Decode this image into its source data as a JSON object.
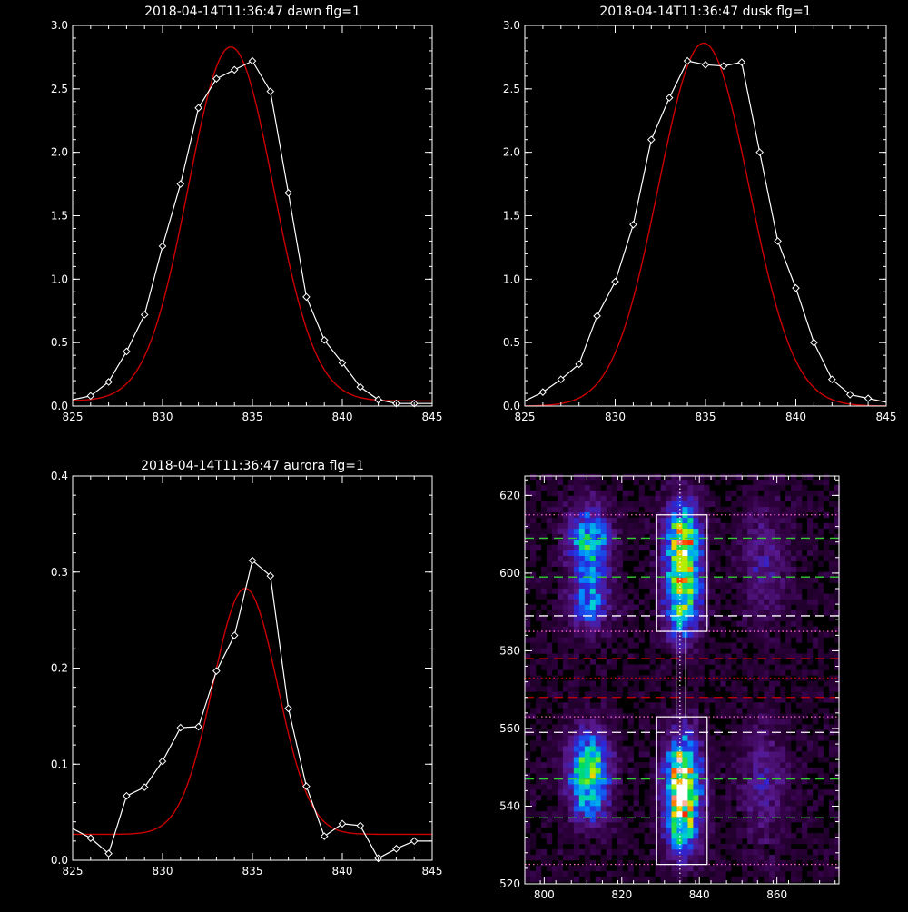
{
  "colors": {
    "background": "#000000",
    "axes": "#ffffff",
    "data_line": "#ffffff",
    "fit_line": "#cc0000",
    "green_guide": "#33cc33",
    "white_guide": "#ffffff",
    "red_guide": "#cc0000",
    "pink_guide": "#ff66cc"
  },
  "chart_data": [
    {
      "type": "line",
      "title": "2018-04-14T11:36:47 dawn flg=1",
      "xlabel": "",
      "ylabel": "",
      "xlim": [
        825,
        845
      ],
      "ylim": [
        0,
        3.0
      ],
      "xticks": [
        825,
        830,
        835,
        840,
        845
      ],
      "xtick_labels": [
        "825",
        "830",
        "835",
        "840",
        "845"
      ],
      "yticks": [
        0,
        0.5,
        1.0,
        1.5,
        2.0,
        2.5,
        3.0
      ],
      "ytick_labels": [
        "0.0",
        "0.5",
        "1.0",
        "1.5",
        "2.0",
        "2.5",
        "3.0"
      ],
      "series": [
        {
          "style": "line-with-diamond-markers",
          "x": [
            825,
            826,
            827,
            828,
            829,
            830,
            831,
            832,
            833,
            834,
            835,
            836,
            837,
            838,
            839,
            840,
            841,
            842,
            843,
            844,
            845
          ],
          "y": [
            0.05,
            0.08,
            0.19,
            0.43,
            0.72,
            1.26,
            1.75,
            2.35,
            2.58,
            2.65,
            2.72,
            2.48,
            1.68,
            0.86,
            0.52,
            0.34,
            0.15,
            0.05,
            0.02,
            0.02,
            0.02
          ]
        },
        {
          "style": "gaussian-fit",
          "amplitude": 2.79,
          "center": 833.8,
          "sigma": 2.36,
          "baseline": 0.04
        }
      ]
    },
    {
      "type": "line",
      "title": "2018-04-14T11:36:47 dusk flg=1",
      "xlabel": "",
      "ylabel": "",
      "xlim": [
        825,
        845
      ],
      "ylim": [
        0,
        3.0
      ],
      "xticks": [
        825,
        830,
        835,
        840,
        845
      ],
      "xtick_labels": [
        "825",
        "830",
        "835",
        "840",
        "845"
      ],
      "yticks": [
        0,
        0.5,
        1.0,
        1.5,
        2.0,
        2.5,
        3.0
      ],
      "ytick_labels": [
        "0.0",
        "0.5",
        "1.0",
        "1.5",
        "2.0",
        "2.5",
        "3.0"
      ],
      "series": [
        {
          "style": "line-with-diamond-markers",
          "x": [
            825,
            826,
            827,
            828,
            829,
            830,
            831,
            832,
            833,
            834,
            835,
            836,
            837,
            838,
            839,
            840,
            841,
            842,
            843,
            844,
            845
          ],
          "y": [
            0.04,
            0.11,
            0.21,
            0.33,
            0.71,
            0.98,
            1.43,
            2.1,
            2.43,
            2.72,
            2.69,
            2.68,
            2.71,
            2.0,
            1.3,
            0.93,
            0.5,
            0.21,
            0.09,
            0.06,
            0.03
          ]
        },
        {
          "style": "gaussian-fit",
          "amplitude": 2.86,
          "center": 834.9,
          "sigma": 2.5,
          "baseline": 0.0
        }
      ]
    },
    {
      "type": "line",
      "title": "2018-04-14T11:36:47 aurora flg=1",
      "xlabel": "",
      "ylabel": "",
      "xlim": [
        825,
        845
      ],
      "ylim": [
        0,
        0.4
      ],
      "xticks": [
        825,
        830,
        835,
        840,
        845
      ],
      "xtick_labels": [
        "825",
        "830",
        "835",
        "840",
        "845"
      ],
      "yticks": [
        0,
        0.1,
        0.2,
        0.3,
        0.4
      ],
      "ytick_labels": [
        "0.0",
        "0.1",
        "0.2",
        "0.3",
        "0.4"
      ],
      "series": [
        {
          "style": "line-with-diamond-markers",
          "x": [
            825,
            826,
            827,
            828,
            829,
            830,
            831,
            832,
            833,
            834,
            835,
            836,
            837,
            838,
            839,
            840,
            841,
            842,
            843,
            844,
            845
          ],
          "y": [
            0.033,
            0.023,
            0.007,
            0.067,
            0.076,
            0.103,
            0.138,
            0.139,
            0.197,
            0.234,
            0.312,
            0.296,
            0.158,
            0.077,
            0.025,
            0.038,
            0.036,
            0.002,
            0.012,
            0.02,
            0.02
          ]
        },
        {
          "style": "gaussian-fit",
          "amplitude": 0.256,
          "center": 834.6,
          "sigma": 1.8,
          "baseline": 0.027
        }
      ]
    },
    {
      "type": "heatmap",
      "title": "",
      "xlabel": "",
      "ylabel": "",
      "xlim": [
        795,
        876
      ],
      "ylim": [
        520,
        625
      ],
      "xticks": [
        800,
        820,
        840,
        860
      ],
      "xtick_labels": [
        "800",
        "820",
        "840",
        "860"
      ],
      "yticks": [
        520,
        540,
        560,
        580,
        600,
        620
      ],
      "ytick_labels": [
        "520",
        "540",
        "560",
        "580",
        "600",
        "620"
      ],
      "colormap": "rainbow",
      "emission_blobs": [
        {
          "x": 811,
          "y": 607,
          "sx": 3.5,
          "sy": 6,
          "peak": 0.52
        },
        {
          "x": 811,
          "y": 592,
          "sx": 3.5,
          "sy": 5,
          "peak": 0.36
        },
        {
          "x": 835,
          "y": 605,
          "sx": 3.0,
          "sy": 8,
          "peak": 0.82
        },
        {
          "x": 835,
          "y": 590,
          "sx": 3.0,
          "sy": 6,
          "peak": 0.42
        },
        {
          "x": 856,
          "y": 602,
          "sx": 4.0,
          "sy": 10,
          "peak": 0.16
        },
        {
          "x": 811,
          "y": 544,
          "sx": 3.5,
          "sy": 6,
          "peak": 0.5
        },
        {
          "x": 811,
          "y": 553,
          "sx": 3.5,
          "sy": 5,
          "peak": 0.32
        },
        {
          "x": 835,
          "y": 545,
          "sx": 3.0,
          "sy": 8,
          "peak": 0.92
        },
        {
          "x": 835,
          "y": 532,
          "sx": 3.0,
          "sy": 5,
          "peak": 0.3
        },
        {
          "x": 856,
          "y": 545,
          "sx": 4.0,
          "sy": 10,
          "peak": 0.16
        }
      ],
      "boxes": [
        {
          "x": [
            829,
            842
          ],
          "y": [
            585,
            615
          ]
        },
        {
          "x": [
            829,
            842
          ],
          "y": [
            525,
            563
          ]
        },
        {
          "x": [
            834,
            836.5
          ],
          "y": [
            563,
            585
          ]
        }
      ],
      "vertical_line": {
        "x": 835,
        "style": "dotted",
        "color": "white"
      },
      "horizontal_lines": [
        {
          "y": 615,
          "style": "dotted",
          "color": "pink"
        },
        {
          "y": 609,
          "style": "dashed",
          "color": "green"
        },
        {
          "y": 599,
          "style": "dashed",
          "color": "green"
        },
        {
          "y": 589,
          "style": "dashed",
          "color": "white"
        },
        {
          "y": 585,
          "style": "dotted",
          "color": "pink"
        },
        {
          "y": 578,
          "style": "dashed",
          "color": "red"
        },
        {
          "y": 573,
          "style": "dotted",
          "color": "red"
        },
        {
          "y": 568,
          "style": "dashed",
          "color": "red"
        },
        {
          "y": 563,
          "style": "dotted",
          "color": "pink"
        },
        {
          "y": 559,
          "style": "dashed",
          "color": "white"
        },
        {
          "y": 547,
          "style": "dashed",
          "color": "green"
        },
        {
          "y": 537,
          "style": "dashed",
          "color": "green"
        },
        {
          "y": 525,
          "style": "dotted",
          "color": "pink"
        }
      ]
    }
  ]
}
